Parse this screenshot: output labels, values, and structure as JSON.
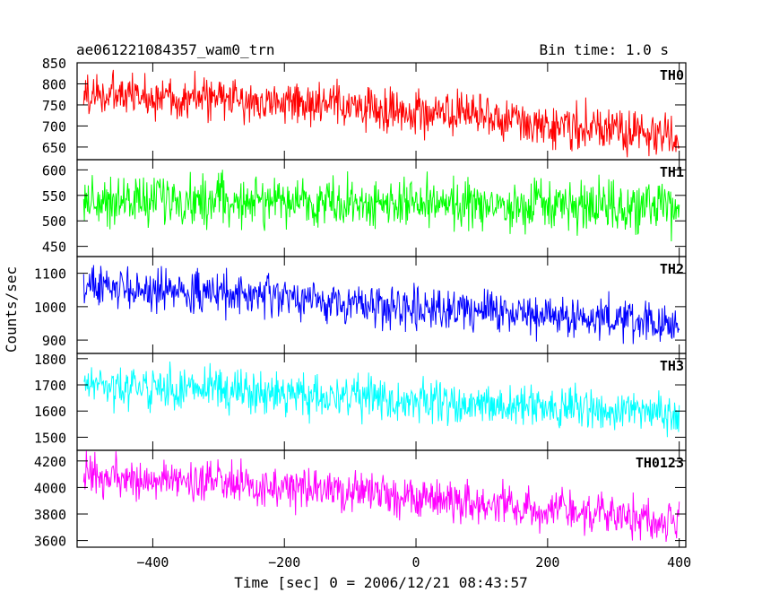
{
  "chart_data": {
    "type": "line",
    "title": "ae061221084357_wam0_trn",
    "bin_time": "Bin time: 1.0 s",
    "xlabel": "Time [sec] 0 = 2006/12/21 08:43:57",
    "ylabel": "Counts/sec",
    "xlim": [
      -515,
      410
    ],
    "xticks": [
      -400,
      -200,
      0,
      200,
      400
    ],
    "x_range": [
      -505,
      400
    ],
    "grid": false,
    "panels": [
      {
        "name": "TH0",
        "color": "#ff0000",
        "ylim": [
          620,
          850
        ],
        "yticks": [
          650,
          700,
          750,
          800,
          850
        ],
        "trend": {
          "x": [
            -505,
            -300,
            -100,
            100,
            300,
            400
          ],
          "y": [
            775,
            765,
            745,
            720,
            690,
            670
          ]
        },
        "noise": 32
      },
      {
        "name": "TH1",
        "color": "#00ff00",
        "ylim": [
          430,
          620
        ],
        "yticks": [
          450,
          500,
          550,
          600
        ],
        "trend": {
          "x": [
            -505,
            -300,
            -100,
            100,
            300,
            400
          ],
          "y": [
            540,
            540,
            535,
            530,
            525,
            520
          ]
        },
        "noise": 30
      },
      {
        "name": "TH2",
        "color": "#0000ff",
        "ylim": [
          860,
          1150
        ],
        "yticks": [
          900,
          1000,
          1100
        ],
        "trend": {
          "x": [
            -505,
            -300,
            -100,
            100,
            300,
            400
          ],
          "y": [
            1060,
            1040,
            1010,
            990,
            960,
            940
          ]
        },
        "noise": 38
      },
      {
        "name": "TH3",
        "color": "#00ffff",
        "ylim": [
          1450,
          1820
        ],
        "yticks": [
          1500,
          1600,
          1700,
          1800
        ],
        "trend": {
          "x": [
            -505,
            -300,
            -100,
            100,
            300,
            400
          ],
          "y": [
            1700,
            1680,
            1650,
            1630,
            1600,
            1590
          ]
        },
        "noise": 48
      },
      {
        "name": "TH0123",
        "color": "#ff00ff",
        "ylim": [
          3550,
          4280
        ],
        "yticks": [
          3600,
          3800,
          4000,
          4200
        ],
        "trend": {
          "x": [
            -505,
            -300,
            -100,
            100,
            300,
            400
          ],
          "y": [
            4080,
            4030,
            3960,
            3880,
            3790,
            3740
          ]
        },
        "noise": 95
      }
    ]
  }
}
